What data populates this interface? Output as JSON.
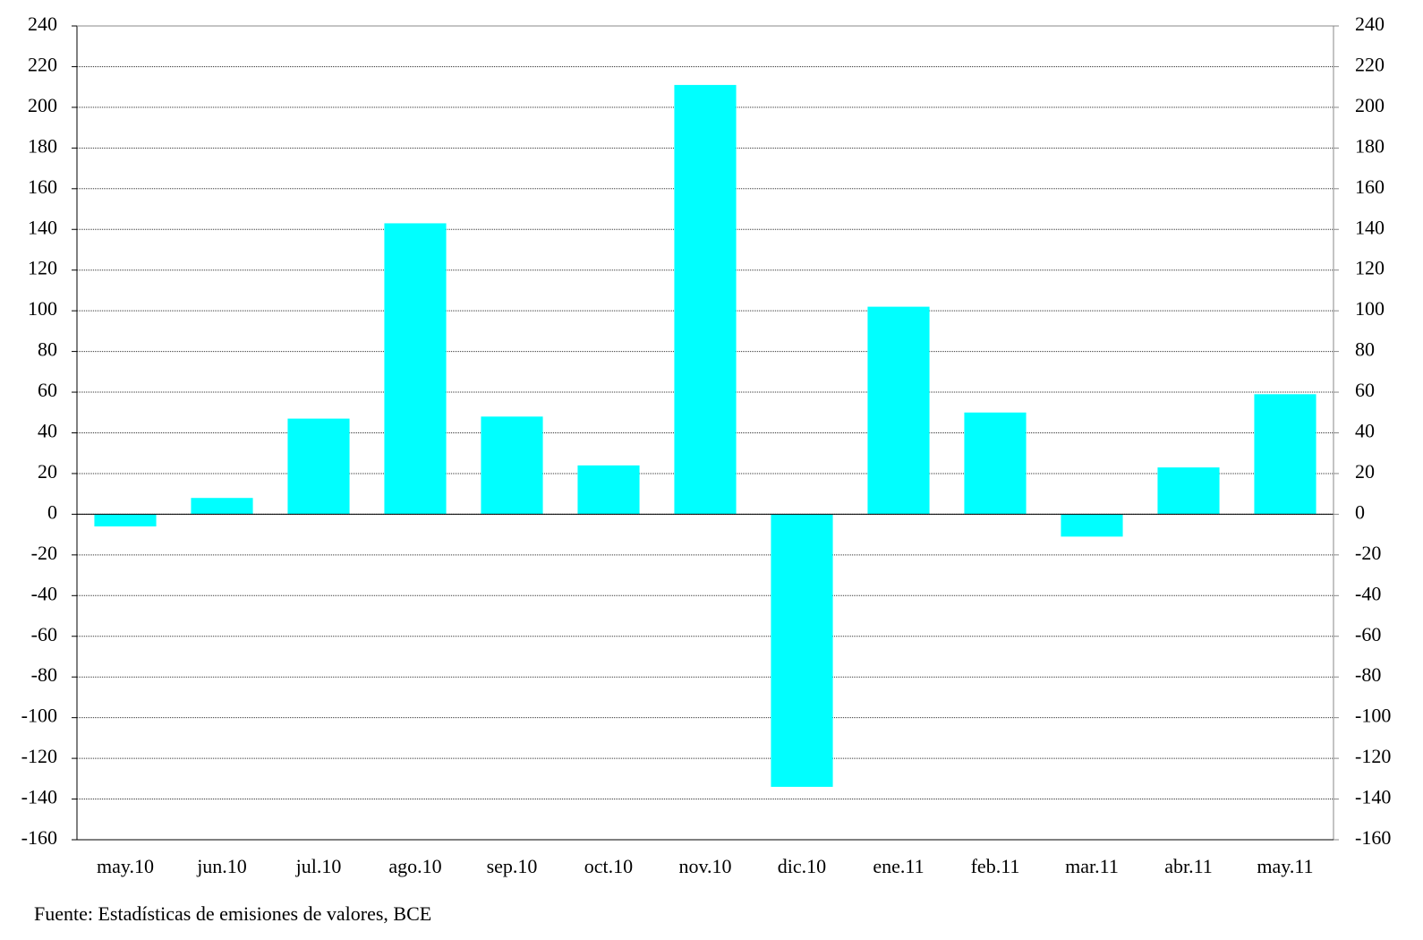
{
  "chart_data": {
    "type": "bar",
    "categories": [
      "may.10",
      "jun.10",
      "jul.10",
      "ago.10",
      "sep.10",
      "oct.10",
      "nov.10",
      "dic.10",
      "ene.11",
      "feb.11",
      "mar.11",
      "abr.11",
      "may.11"
    ],
    "values": [
      -6,
      8,
      47,
      143,
      48,
      24,
      211,
      -134,
      102,
      50,
      -11,
      23,
      59
    ],
    "color": "#00ffff",
    "ylim": [
      -160,
      240
    ],
    "yticks": [
      -160,
      -140,
      -120,
      -100,
      -80,
      -60,
      -40,
      -20,
      0,
      20,
      40,
      60,
      80,
      100,
      120,
      140,
      160,
      180,
      200,
      220,
      240
    ],
    "y2lim": [
      -160,
      240
    ],
    "y2ticks": [
      -160,
      -140,
      -120,
      -100,
      -80,
      -60,
      -40,
      -20,
      0,
      20,
      40,
      60,
      80,
      100,
      120,
      140,
      160,
      180,
      200,
      220,
      240
    ],
    "grid": true,
    "source": "Fuente: Estadísticas de emisiones de valores, BCE"
  }
}
